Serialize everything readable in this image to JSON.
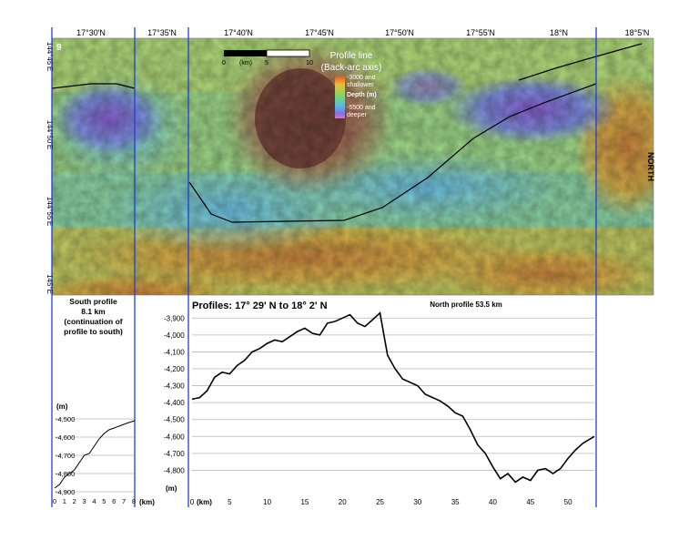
{
  "figure": {
    "panel_letter": "9",
    "north_label": "NORTH",
    "top_latitudes": [
      "17°30'N",
      "17°35'N",
      "17°40'N",
      "17°45'N",
      "17°50'N",
      "17°55'N",
      "18°N",
      "18°5'N"
    ],
    "left_longitudes": [
      "144°45'E",
      "144°50'E",
      "144°55'E",
      "145°E"
    ],
    "scale_bar": {
      "unit": "(km)",
      "ticks": [
        "0",
        "5",
        "10"
      ]
    },
    "legend": {
      "title": "Profile line",
      "subtitle": "(Back-arc axis)",
      "top_label": "-3000 and shallower",
      "middle_label": "Depth (m)",
      "bottom_label": "-5500 and deeper"
    },
    "colors": {
      "deep": "#9b6fd9",
      "mid_deep": "#6fb6e6",
      "mid": "#8fd88f",
      "shallow": "#d8c24a",
      "shallowest": "#8a5a4a",
      "divider": "#1f3fd6"
    }
  },
  "south_profile": {
    "title_lines": [
      "South profile",
      "8.1 km",
      "(continuation of",
      "profile to south)"
    ],
    "ylabel": "(m)",
    "xlabel": "(km)",
    "chart_data": {
      "type": "line",
      "ylabel": "(m)",
      "xlabel": "(km)",
      "xlim": [
        0,
        8
      ],
      "ylim": [
        -4900,
        -4500
      ],
      "x_ticks": [
        "0",
        "1",
        "2",
        "3",
        "4",
        "5",
        "6",
        "7",
        "8"
      ],
      "y_ticks": [
        "-4,500",
        "-4,600",
        "-4,700",
        "-4,800",
        "-4,900"
      ],
      "series": [
        {
          "x": [
            0,
            0.5,
            1,
            1.5,
            2,
            2.5,
            3,
            3.5,
            4,
            4.5,
            5,
            5.5,
            6,
            6.5,
            7,
            7.5,
            8.1
          ],
          "y": [
            -4880,
            -4860,
            -4820,
            -4800,
            -4780,
            -4740,
            -4700,
            -4690,
            -4650,
            -4610,
            -4580,
            -4560,
            -4550,
            -4540,
            -4530,
            -4520,
            -4510
          ]
        }
      ]
    }
  },
  "north_profile": {
    "heading": "Profiles:  17° 29' N to 18° 2' N",
    "subtitle": "North profile 53.5 km",
    "ylabel": "(m)",
    "xlabel": "(km)",
    "chart_data": {
      "type": "line",
      "ylabel": "(m)",
      "xlabel": "(km)",
      "xlim": [
        0,
        53.5
      ],
      "ylim": [
        -4900,
        -3850
      ],
      "x_ticks": [
        "0",
        "5",
        "10",
        "15",
        "20",
        "25",
        "30",
        "35",
        "40",
        "45",
        "50"
      ],
      "y_ticks": [
        "-3,900",
        "-4,000",
        "-4,100",
        "-4,200",
        "-4,300",
        "-4,400",
        "-4,500",
        "-4,600",
        "-4,700",
        "-4,800"
      ],
      "series": [
        {
          "x": [
            0,
            1,
            2,
            3,
            4,
            5,
            6,
            7,
            8,
            9,
            10,
            11,
            12,
            13,
            14,
            15,
            16,
            17,
            18,
            19,
            20,
            21,
            22,
            23,
            24,
            25,
            26,
            27,
            28,
            29,
            30,
            31,
            32,
            33,
            34,
            35,
            36,
            37,
            38,
            39,
            40,
            41,
            42,
            43,
            44,
            45,
            46,
            47,
            48,
            49,
            50,
            51,
            52,
            53.5
          ],
          "y": [
            -4380,
            -4370,
            -4330,
            -4250,
            -4220,
            -4230,
            -4180,
            -4150,
            -4100,
            -4080,
            -4050,
            -4030,
            -4040,
            -4010,
            -3980,
            -3960,
            -3990,
            -4000,
            -3930,
            -3920,
            -3900,
            -3880,
            -3930,
            -3950,
            -3910,
            -3870,
            -4120,
            -4200,
            -4260,
            -4280,
            -4300,
            -4350,
            -4370,
            -4390,
            -4420,
            -4460,
            -4480,
            -4560,
            -4650,
            -4700,
            -4780,
            -4850,
            -4820,
            -4870,
            -4840,
            -4860,
            -4800,
            -4790,
            -4820,
            -4790,
            -4730,
            -4680,
            -4640,
            -4600
          ]
        }
      ]
    }
  }
}
